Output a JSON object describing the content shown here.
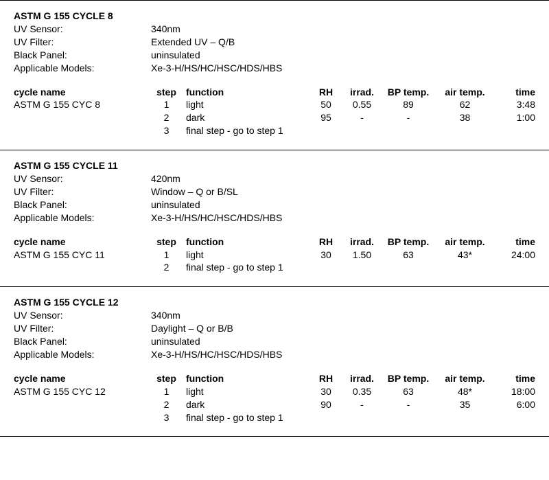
{
  "headers": {
    "cycle_name": "cycle name",
    "step": "step",
    "function": "function",
    "rh": "RH",
    "irrad": "irrad.",
    "bp_temp": "BP temp.",
    "air_temp": "air temp.",
    "time": "time"
  },
  "meta_labels": {
    "uv_sensor": "UV Sensor:",
    "uv_filter": "UV Filter:",
    "black_panel": "Black Panel:",
    "models": "Applicable Models:"
  },
  "sections": [
    {
      "title": "ASTM G 155 CYCLE 8",
      "uv_sensor": "340nm",
      "uv_filter": "Extended UV – Q/B",
      "black_panel": "uninsulated",
      "models": "Xe-3-H/HS/HC/HSC/HDS/HBS",
      "cycle_name": "ASTM G 155 CYC 8",
      "rows": [
        {
          "step": "1",
          "function": "light",
          "rh": "50",
          "irrad": "0.55",
          "bp": "89",
          "air": "62",
          "time": "3:48"
        },
        {
          "step": "2",
          "function": "dark",
          "rh": "95",
          "irrad": "-",
          "bp": "-",
          "air": "38",
          "time": "1:00"
        },
        {
          "step": "3",
          "function": "final step - go to step 1",
          "rh": "",
          "irrad": "",
          "bp": "",
          "air": "",
          "time": ""
        }
      ]
    },
    {
      "title": "ASTM G 155 CYCLE 11",
      "uv_sensor": "420nm",
      "uv_filter": "Window – Q or B/SL",
      "black_panel": "uninsulated",
      "models": "Xe-3-H/HS/HC/HSC/HDS/HBS",
      "cycle_name": "ASTM G 155 CYC 11",
      "rows": [
        {
          "step": "1",
          "function": "light",
          "rh": "30",
          "irrad": "1.50",
          "bp": "63",
          "air": "43*",
          "time": "24:00"
        },
        {
          "step": "2",
          "function": "final step - go to step 1",
          "rh": "",
          "irrad": "",
          "bp": "",
          "air": "",
          "time": ""
        }
      ]
    },
    {
      "title": "ASTM G 155 CYCLE 12",
      "uv_sensor": "340nm",
      "uv_filter": "Daylight – Q or B/B",
      "black_panel": "uninsulated",
      "models": "Xe-3-H/HS/HC/HSC/HDS/HBS",
      "cycle_name": "ASTM G 155 CYC 12",
      "rows": [
        {
          "step": "1",
          "function": "light",
          "rh": "30",
          "irrad": "0.35",
          "bp": "63",
          "air": "48*",
          "time": "18:00"
        },
        {
          "step": "2",
          "function": "dark",
          "rh": "90",
          "irrad": "-",
          "bp": "-",
          "air": "35",
          "time": "6:00"
        },
        {
          "step": "3",
          "function": "final step - go to step 1",
          "rh": "",
          "irrad": "",
          "bp": "",
          "air": "",
          "time": ""
        }
      ]
    }
  ]
}
